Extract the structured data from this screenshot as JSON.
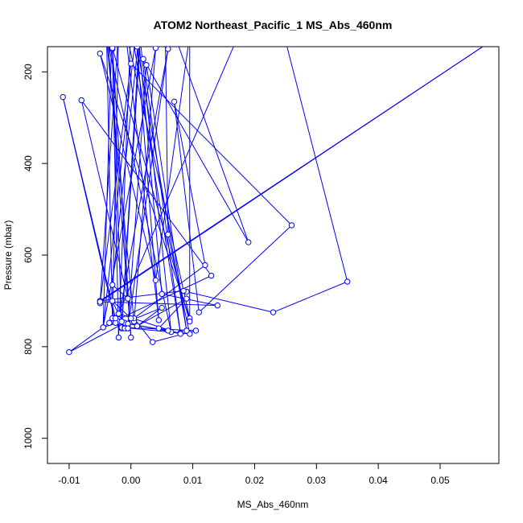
{
  "chart_data": {
    "type": "line",
    "title": "ATOM2 Northeast_Pacific_1 MS_Abs_460nm",
    "xlabel": "MS_Abs_460nm",
    "ylabel": "Pressure (mbar)",
    "xlim": [
      -0.0135,
      0.0595
    ],
    "ylim": [
      1055,
      145
    ],
    "y_reversed": true,
    "grid": false,
    "x_ticks": [
      -0.01,
      0.0,
      0.01,
      0.02,
      0.03,
      0.04,
      0.05
    ],
    "x_tick_labels": [
      "-0.01",
      "0.00",
      "0.01",
      "0.02",
      "0.03",
      "0.04",
      "0.05"
    ],
    "y_ticks": [
      200,
      400,
      600,
      800,
      1000
    ],
    "y_tick_labels": [
      "200",
      "400",
      "600",
      "800",
      "1000"
    ],
    "series_color": "#0000ff",
    "series": [
      {
        "points": [
          [
            -0.003,
            80
          ],
          [
            -0.0045,
            758
          ],
          [
            0.004,
            148
          ],
          [
            0.0005,
            745
          ],
          [
            -0.004,
            120
          ],
          [
            0.0065,
            768
          ],
          [
            0.0015,
            130
          ],
          [
            -0.0015,
            760
          ],
          [
            -0.003,
            150
          ],
          [
            -0.002,
            780
          ],
          [
            0.0,
            100
          ],
          [
            0.008,
            770
          ],
          [
            0.002,
            172
          ],
          [
            0.019,
            572
          ],
          [
            0.0055,
            60
          ],
          [
            0.006,
            555
          ],
          [
            0.0095,
            772
          ],
          [
            -0.0015,
            758
          ],
          [
            0.0015,
            95
          ],
          [
            -0.003,
            665
          ],
          [
            -0.0005,
            695
          ],
          [
            -0.008,
            262
          ],
          [
            0.013,
            645
          ],
          [
            -0.002,
            740
          ],
          [
            0.006,
            150
          ],
          [
            -0.0005,
            760
          ],
          [
            0.0025,
            185
          ],
          [
            0.009,
            765
          ],
          [
            0.001,
            145
          ],
          [
            0.0045,
            742
          ],
          [
            -0.001,
            100
          ],
          [
            0.0095,
            738
          ],
          [
            -0.005,
            160
          ],
          [
            0.004,
            655
          ],
          [
            0.0095,
            120
          ],
          [
            0.0095,
            745
          ],
          [
            -0.003,
            148
          ],
          [
            0.0,
            780
          ],
          [
            -0.004,
            85
          ],
          [
            -0.003,
            738
          ],
          [
            -0.002,
            110
          ],
          [
            -0.005,
            705
          ],
          [
            0.0,
            182
          ],
          [
            0.026,
            535
          ],
          [
            0.011,
            725
          ],
          [
            0.007,
            265
          ],
          [
            0.012,
            622
          ],
          [
            0.0005,
            738
          ],
          [
            0.0035,
            790
          ],
          [
            0.0105,
            765
          ],
          [
            -0.001,
            758
          ],
          [
            -0.0035,
            748
          ],
          [
            -0.01,
            812
          ],
          [
            -0.001,
            748
          ],
          [
            0.005,
            715
          ],
          [
            0.001,
            755
          ],
          [
            0.009,
            695
          ],
          [
            0.0045,
            760
          ],
          [
            0.006,
            765
          ],
          [
            -0.0005,
            750
          ],
          [
            -0.002,
            745
          ],
          [
            0.008,
            772
          ],
          [
            -0.002,
            728
          ],
          [
            0.022,
            -25
          ],
          [
            0.035,
            658
          ],
          [
            0.023,
            725
          ],
          [
            0.009,
            680
          ],
          [
            0.0085,
            678
          ],
          [
            -0.005,
            700
          ],
          [
            0.058,
            135
          ],
          [
            -0.005,
            702
          ],
          [
            0.014,
            710
          ],
          [
            0.005,
            685
          ],
          [
            0.001,
            90
          ],
          [
            -0.0045,
            758
          ],
          [
            -0.0015,
            745
          ],
          [
            -0.0025,
            748
          ],
          [
            -0.011,
            255
          ],
          [
            -0.0025,
            738
          ],
          [
            -0.001,
            760
          ],
          [
            -0.003,
            700
          ],
          [
            0.0,
            738
          ],
          [
            -0.0005,
            760
          ]
        ]
      }
    ]
  }
}
